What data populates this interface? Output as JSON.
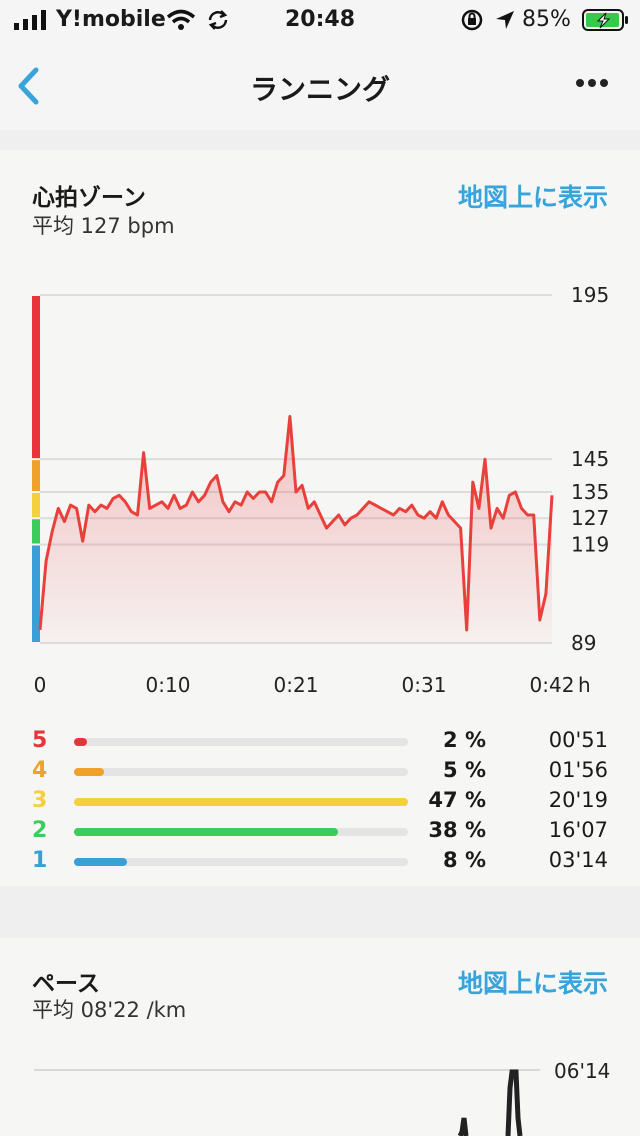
{
  "status_bar": {
    "carrier": "Y!mobile",
    "time": "20:48",
    "battery": "85%"
  },
  "nav": {
    "title": "ランニング"
  },
  "heart_zone": {
    "title": "心拍ゾーン",
    "average": "平均 127 bpm",
    "map_link": "地図上に表示",
    "y_ticks": [
      "195",
      "145",
      "135",
      "127",
      "119",
      "89"
    ],
    "x_ticks": [
      "0",
      "0:10",
      "0:21",
      "0:31",
      "0:42"
    ],
    "x_unit": "h",
    "zones": [
      {
        "num": "5",
        "color": "#e8343a",
        "pct": "2 %",
        "time": "00'51",
        "fraction": 0.04
      },
      {
        "num": "4",
        "color": "#f0a12a",
        "pct": "5 %",
        "time": "01'56",
        "fraction": 0.09
      },
      {
        "num": "3",
        "color": "#f5d03d",
        "pct": "47 %",
        "time": "20'19",
        "fraction": 1.0
      },
      {
        "num": "2",
        "color": "#3ccc5c",
        "pct": "38 %",
        "time": "16'07",
        "fraction": 0.79
      },
      {
        "num": "1",
        "color": "#3a9fd8",
        "pct": "8 %",
        "time": "03'14",
        "fraction": 0.16
      }
    ]
  },
  "chart_data": {
    "type": "line",
    "x_range_minutes": [
      0,
      42
    ],
    "ylim": [
      89,
      195
    ],
    "series": [
      {
        "x": [
          0,
          0.5,
          1,
          1.5,
          2,
          2.5,
          3,
          3.5,
          4,
          4.5,
          5,
          5.5,
          6,
          6.5,
          7,
          7.5,
          8,
          8.5,
          9,
          9.5,
          10,
          10.5,
          11,
          11.5,
          12,
          12.5,
          13,
          13.5,
          14,
          14.5,
          15,
          15.5,
          16,
          16.5,
          17,
          17.5,
          18,
          18.5,
          19,
          19.5,
          20,
          20.5,
          21,
          21.5,
          22,
          22.5,
          23,
          23.5,
          24,
          24.5,
          25,
          25.5,
          26,
          26.5,
          27,
          27.5,
          28,
          28.5,
          29,
          29.5,
          30,
          30.5,
          31,
          31.5,
          32,
          32.5,
          33,
          33.5,
          34,
          34.5,
          35,
          35.5,
          36,
          36.5,
          37,
          37.5,
          38,
          38.5,
          39,
          39.5,
          40,
          40.5,
          41,
          41.5,
          42
        ],
        "y": [
          93,
          114,
          123,
          130,
          126,
          131,
          130,
          120,
          131,
          129,
          131,
          130,
          133,
          134,
          132,
          129,
          128,
          147,
          130,
          131,
          132,
          130,
          134,
          130,
          131,
          135,
          132,
          134,
          138,
          140,
          132,
          129,
          132,
          131,
          135,
          133,
          135,
          135,
          132,
          138,
          140,
          158,
          135,
          137,
          130,
          132,
          128,
          124,
          126,
          128,
          125,
          127,
          128,
          130,
          132,
          131,
          130,
          129,
          128,
          130,
          129,
          131,
          128,
          127,
          129,
          127,
          132,
          128,
          126,
          124,
          93,
          138,
          130,
          145,
          124,
          130,
          127,
          134,
          135,
          130,
          128,
          128,
          96,
          104,
          134
        ]
      }
    ]
  },
  "pace": {
    "title": "ペース",
    "average": "平均 08'22 /km",
    "map_link": "地図上に表示",
    "top_tick": "06'14"
  }
}
